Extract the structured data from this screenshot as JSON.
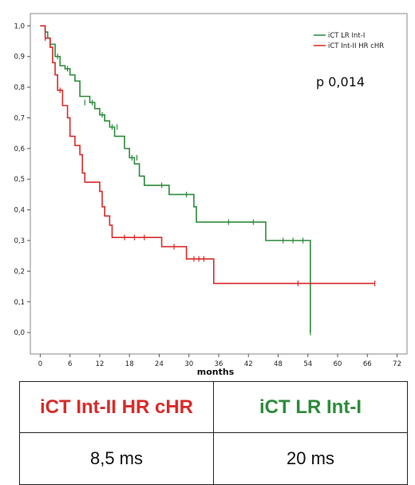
{
  "chart_data": {
    "type": "line",
    "xlabel": "months",
    "ylabel": "",
    "xlim": [
      -2,
      74
    ],
    "ylim": [
      -0.07,
      1.04
    ],
    "x_ticks": [
      0,
      6,
      12,
      18,
      24,
      30,
      36,
      42,
      48,
      54,
      60,
      66,
      72
    ],
    "y_ticks": [
      "1,0",
      "0,9",
      "0,8",
      "0,7",
      "0,6",
      "0,5",
      "0,4",
      "0,3",
      "0,2",
      "0,1",
      "0,0"
    ],
    "y_tick_values": [
      1.0,
      0.9,
      0.8,
      0.7,
      0.6,
      0.5,
      0.4,
      0.3,
      0.2,
      0.1,
      0.0
    ],
    "legend_position": "top-right",
    "annotation": "p 0,014",
    "series": [
      {
        "name": "iCT LR Int-I",
        "color": "#2e8b3c",
        "steps": [
          [
            0,
            1.0
          ],
          [
            1,
            0.98
          ],
          [
            1.5,
            0.96
          ],
          [
            2,
            0.94
          ],
          [
            3,
            0.9
          ],
          [
            4,
            0.87
          ],
          [
            5,
            0.86
          ],
          [
            6,
            0.84
          ],
          [
            7,
            0.82
          ],
          [
            8,
            0.77
          ],
          [
            10,
            0.75
          ],
          [
            11,
            0.73
          ],
          [
            12,
            0.71
          ],
          [
            13,
            0.69
          ],
          [
            14,
            0.67
          ],
          [
            15,
            0.64
          ],
          [
            17,
            0.6
          ],
          [
            18,
            0.57
          ],
          [
            19,
            0.55
          ],
          [
            20,
            0.51
          ],
          [
            21,
            0.48
          ],
          [
            24,
            0.48
          ],
          [
            26,
            0.45
          ],
          [
            30,
            0.45
          ],
          [
            31,
            0.41
          ],
          [
            31.5,
            0.36
          ],
          [
            45,
            0.36
          ],
          [
            45.5,
            0.3
          ],
          [
            54.5,
            0.3
          ],
          [
            54.5,
            0.0
          ]
        ],
        "censored": [
          [
            2,
            0.94
          ],
          [
            3.5,
            0.9
          ],
          [
            5.5,
            0.86
          ],
          [
            9,
            0.75
          ],
          [
            10.5,
            0.75
          ],
          [
            12.5,
            0.71
          ],
          [
            14.5,
            0.67
          ],
          [
            15.5,
            0.67
          ],
          [
            18.5,
            0.57
          ],
          [
            19.5,
            0.57
          ],
          [
            24.5,
            0.48
          ],
          [
            29.5,
            0.45
          ],
          [
            38,
            0.36
          ],
          [
            43,
            0.36
          ],
          [
            49,
            0.3
          ],
          [
            51,
            0.3
          ],
          [
            53,
            0.3
          ],
          [
            54.5,
            0.0
          ]
        ]
      },
      {
        "name": "iCT Int-II HR cHR",
        "color": "#d92b2b",
        "steps": [
          [
            0,
            1.0
          ],
          [
            1,
            0.96
          ],
          [
            2,
            0.93
          ],
          [
            2.5,
            0.88
          ],
          [
            3,
            0.84
          ],
          [
            3.5,
            0.79
          ],
          [
            4.5,
            0.74
          ],
          [
            5.5,
            0.7
          ],
          [
            6,
            0.64
          ],
          [
            7,
            0.61
          ],
          [
            8,
            0.58
          ],
          [
            8.5,
            0.52
          ],
          [
            9,
            0.49
          ],
          [
            12,
            0.46
          ],
          [
            12.5,
            0.41
          ],
          [
            13,
            0.38
          ],
          [
            14,
            0.35
          ],
          [
            14.5,
            0.31
          ],
          [
            24.5,
            0.28
          ],
          [
            29.5,
            0.24
          ],
          [
            35,
            0.16
          ],
          [
            67.5,
            0.16
          ]
        ],
        "censored": [
          [
            1,
            0.96
          ],
          [
            4,
            0.79
          ],
          [
            17,
            0.31
          ],
          [
            19,
            0.31
          ],
          [
            21,
            0.31
          ],
          [
            27,
            0.28
          ],
          [
            31,
            0.24
          ],
          [
            32,
            0.24
          ],
          [
            33,
            0.24
          ],
          [
            52,
            0.16
          ],
          [
            67.5,
            0.16
          ]
        ]
      }
    ]
  },
  "summary_table": {
    "headers": [
      {
        "label": "iCT Int-II HR cHR",
        "color": "#d92b2b"
      },
      {
        "label": "iCT LR Int-I",
        "color": "#2e8b3c"
      }
    ],
    "values": [
      "8,5 ms",
      "20 ms"
    ]
  }
}
